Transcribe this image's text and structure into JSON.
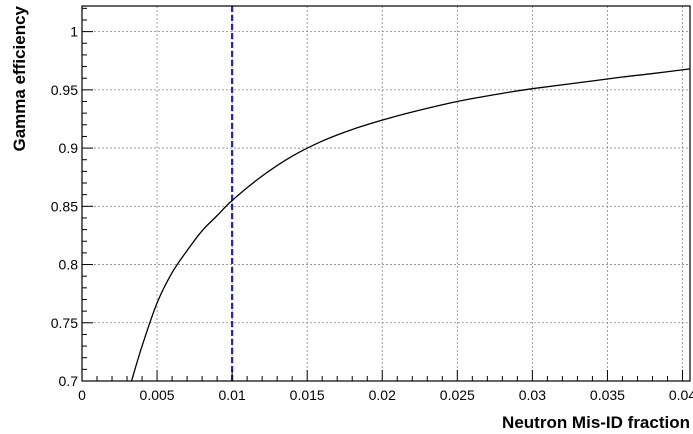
{
  "chart_data": {
    "type": "line",
    "title": "",
    "xlabel": "Neutron Mis-ID fraction",
    "ylabel": "Gamma efficiency",
    "xlim": [
      0,
      0.0405
    ],
    "ylim": [
      0.7,
      1.022
    ],
    "x_ticks": [
      0,
      0.005,
      0.01,
      0.015,
      0.02,
      0.025,
      0.03,
      0.035,
      0.04
    ],
    "x_tick_labels": [
      "0",
      "0.005",
      "0.01",
      "0.015",
      "0.02",
      "0.025",
      "0.03",
      "0.035",
      "0.04"
    ],
    "y_ticks": [
      0.7,
      0.75,
      0.8,
      0.85,
      0.9,
      0.95,
      1
    ],
    "y_tick_labels": [
      "0.7",
      "0.75",
      "0.8",
      "0.85",
      "0.9",
      "0.95",
      "1"
    ],
    "grid": true,
    "legend": "none",
    "series": [
      {
        "color": "#000000",
        "x": [
          0.0033,
          0.004,
          0.005,
          0.006,
          0.007,
          0.008,
          0.009,
          0.01,
          0.012,
          0.014,
          0.016,
          0.018,
          0.02,
          0.022,
          0.025,
          0.028,
          0.03,
          0.033,
          0.036,
          0.038,
          0.0405
        ],
        "y": [
          0.7,
          0.73,
          0.767,
          0.793,
          0.812,
          0.829,
          0.842,
          0.855,
          0.876,
          0.893,
          0.906,
          0.916,
          0.924,
          0.931,
          0.94,
          0.947,
          0.951,
          0.956,
          0.961,
          0.964,
          0.968
        ]
      }
    ],
    "reference_line": {
      "axis": "x",
      "value": 0.01,
      "color": "#1f1fd6",
      "style": "dashed"
    }
  }
}
